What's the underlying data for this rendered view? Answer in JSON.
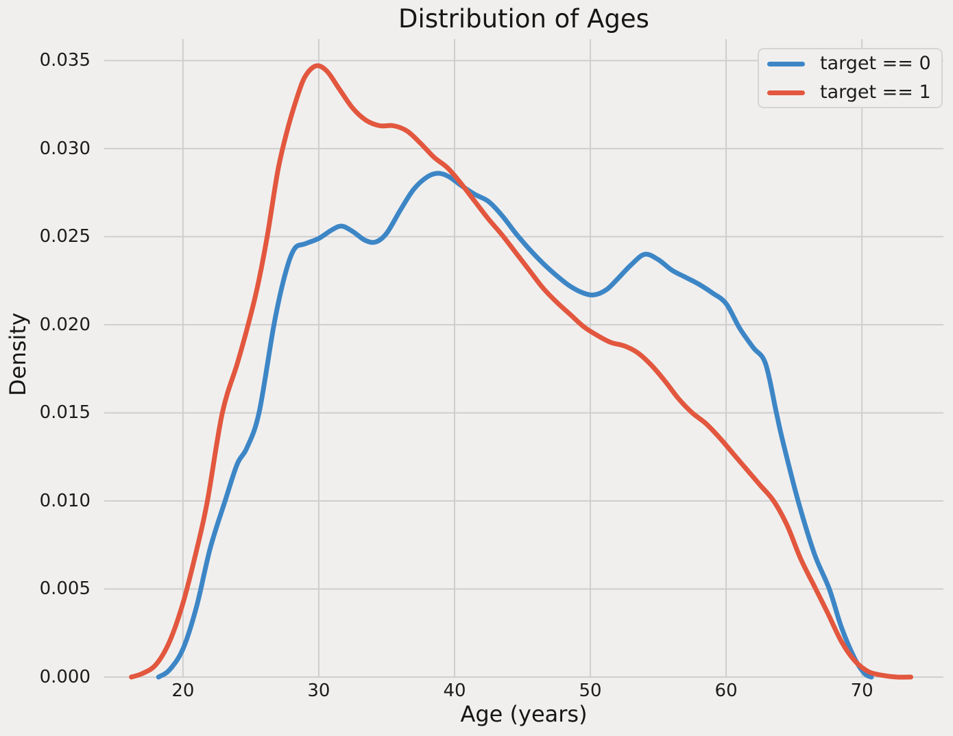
{
  "chart_data": {
    "type": "line",
    "subtype": "kde-density",
    "title": "Distribution of Ages",
    "xlabel": "Age (years)",
    "ylabel": "Density",
    "xlim": [
      14.2,
      76.0
    ],
    "ylim": [
      0,
      0.03622
    ],
    "xticks": [
      20,
      30,
      40,
      50,
      60,
      70
    ],
    "ytick_labels": [
      "0.000",
      "0.005",
      "0.010",
      "0.015",
      "0.020",
      "0.025",
      "0.030",
      "0.035"
    ],
    "ytick_values": [
      0,
      0.005,
      0.01,
      0.015,
      0.02,
      0.025,
      0.03,
      0.035
    ],
    "grid": true,
    "legend_position": "upper right",
    "colors": {
      "background": "#f0efee",
      "grid": "#cecece",
      "text": "#1c1c1c",
      "series0": "#3d86c6",
      "series1": "#e2573e"
    },
    "series": [
      {
        "name": "target == 0",
        "color": "#3d86c6",
        "points": [
          [
            18.2,
            0
          ],
          [
            19,
            0.0004
          ],
          [
            20,
            0.0016
          ],
          [
            21,
            0.004
          ],
          [
            22,
            0.0073
          ],
          [
            23.1,
            0.01
          ],
          [
            24,
            0.0121
          ],
          [
            24.7,
            0.013
          ],
          [
            25.6,
            0.015
          ],
          [
            26.7,
            0.02
          ],
          [
            27.5,
            0.0228
          ],
          [
            28.2,
            0.0243
          ],
          [
            29,
            0.0246
          ],
          [
            30,
            0.0249
          ],
          [
            31,
            0.0254
          ],
          [
            31.7,
            0.0256
          ],
          [
            32.5,
            0.0253
          ],
          [
            33.4,
            0.0248
          ],
          [
            34.2,
            0.0247
          ],
          [
            35,
            0.0252
          ],
          [
            36,
            0.0265
          ],
          [
            37,
            0.0277
          ],
          [
            38,
            0.0284
          ],
          [
            38.8,
            0.0286
          ],
          [
            39.6,
            0.0284
          ],
          [
            40.5,
            0.0279
          ],
          [
            41.5,
            0.0274
          ],
          [
            42.5,
            0.027
          ],
          [
            43.5,
            0.0262
          ],
          [
            44.5,
            0.0252
          ],
          [
            45.5,
            0.0243
          ],
          [
            46.5,
            0.0235
          ],
          [
            47.5,
            0.0228
          ],
          [
            48.5,
            0.0222
          ],
          [
            49.5,
            0.0218
          ],
          [
            50.3,
            0.0217
          ],
          [
            51.2,
            0.022
          ],
          [
            52,
            0.0226
          ],
          [
            53,
            0.0234
          ],
          [
            54,
            0.024
          ],
          [
            55,
            0.0237
          ],
          [
            56,
            0.0231
          ],
          [
            57,
            0.0227
          ],
          [
            58,
            0.0223
          ],
          [
            59,
            0.0218
          ],
          [
            60,
            0.0212
          ],
          [
            61,
            0.0198
          ],
          [
            62,
            0.0187
          ],
          [
            62.9,
            0.0178
          ],
          [
            63.7,
            0.015
          ],
          [
            64.2,
            0.0133
          ],
          [
            65.3,
            0.01
          ],
          [
            66.5,
            0.007
          ],
          [
            67.6,
            0.005
          ],
          [
            68.5,
            0.0028
          ],
          [
            69.5,
            0.001
          ],
          [
            70.2,
            0.0002
          ],
          [
            70.7,
            0
          ]
        ]
      },
      {
        "name": "target == 1",
        "color": "#e2573e",
        "points": [
          [
            16.2,
            0
          ],
          [
            17,
            0.0002
          ],
          [
            18,
            0.0007
          ],
          [
            19,
            0.002
          ],
          [
            20,
            0.0042
          ],
          [
            21,
            0.0072
          ],
          [
            21.8,
            0.01
          ],
          [
            22.9,
            0.015
          ],
          [
            24,
            0.0178
          ],
          [
            24.8,
            0.02
          ],
          [
            25.5,
            0.0222
          ],
          [
            26.2,
            0.025
          ],
          [
            27,
            0.0288
          ],
          [
            27.7,
            0.0311
          ],
          [
            28.4,
            0.0329
          ],
          [
            29,
            0.0341
          ],
          [
            29.8,
            0.0347
          ],
          [
            30.6,
            0.0344
          ],
          [
            31.5,
            0.0334
          ],
          [
            32.5,
            0.0323
          ],
          [
            33.5,
            0.0316
          ],
          [
            34.5,
            0.0313
          ],
          [
            35.5,
            0.0313
          ],
          [
            36.5,
            0.031
          ],
          [
            37.5,
            0.0303
          ],
          [
            38.5,
            0.0295
          ],
          [
            39.5,
            0.0289
          ],
          [
            40.5,
            0.028
          ],
          [
            41.5,
            0.027
          ],
          [
            42.5,
            0.026
          ],
          [
            43.5,
            0.0251
          ],
          [
            44.5,
            0.0241
          ],
          [
            45.5,
            0.0231
          ],
          [
            46.5,
            0.0221
          ],
          [
            47.5,
            0.0213
          ],
          [
            48.5,
            0.0206
          ],
          [
            49.5,
            0.0199
          ],
          [
            50.5,
            0.0194
          ],
          [
            51.5,
            0.019
          ],
          [
            52.5,
            0.0188
          ],
          [
            53.5,
            0.0184
          ],
          [
            54.5,
            0.0177
          ],
          [
            55.5,
            0.0168
          ],
          [
            56.5,
            0.0158
          ],
          [
            57.5,
            0.015
          ],
          [
            58.5,
            0.0144
          ],
          [
            59.5,
            0.0136
          ],
          [
            60.5,
            0.0127
          ],
          [
            61.5,
            0.0118
          ],
          [
            62.5,
            0.0109
          ],
          [
            63.5,
            0.01
          ],
          [
            64.5,
            0.0086
          ],
          [
            65.5,
            0.0067
          ],
          [
            66.6,
            0.005
          ],
          [
            67.5,
            0.0036
          ],
          [
            68.5,
            0.002
          ],
          [
            69.5,
            0.0009
          ],
          [
            70.5,
            0.0003
          ],
          [
            71.5,
            0.0001
          ],
          [
            72.6,
            0
          ],
          [
            73.6,
            0
          ]
        ]
      }
    ]
  }
}
